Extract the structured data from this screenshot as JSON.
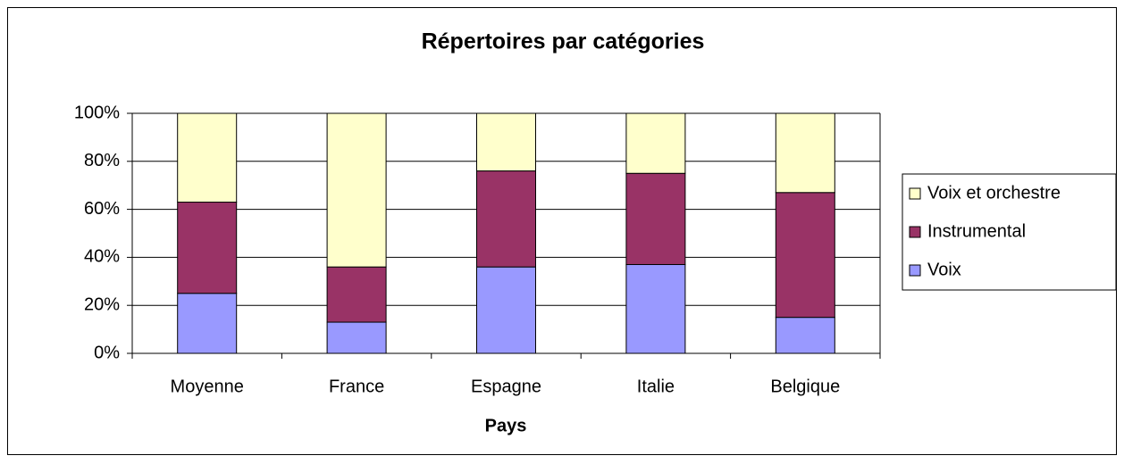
{
  "chart_data": {
    "type": "stacked_bar",
    "title": "Répertoires par catégories",
    "x_label": "Pays",
    "categories": [
      "Moyenne",
      "France",
      "Espagne",
      "Italie",
      "Belgique"
    ],
    "series": [
      {
        "name": "Voix",
        "color": "#9999ff",
        "values": [
          25,
          13,
          36,
          37,
          15
        ]
      },
      {
        "name": "Instrumental",
        "color": "#993366",
        "values": [
          38,
          23,
          40,
          38,
          52
        ]
      },
      {
        "name": "Voix et orchestre",
        "color": "#ffffcc",
        "values": [
          37,
          64,
          24,
          25,
          33
        ]
      }
    ],
    "ylim": [
      0,
      100
    ],
    "yticks": [
      {
        "value": 0,
        "label": "0%"
      },
      {
        "value": 20,
        "label": "20%"
      },
      {
        "value": 40,
        "label": "40%"
      },
      {
        "value": 60,
        "label": "60%"
      },
      {
        "value": 80,
        "label": "80%"
      },
      {
        "value": 100,
        "label": "100%"
      }
    ],
    "grid": true,
    "legend": "right"
  }
}
